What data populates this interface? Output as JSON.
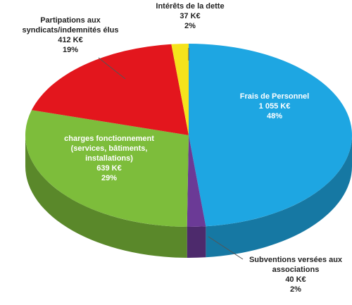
{
  "chart_data": {
    "type": "pie",
    "categories": [
      "Frais de Personnel",
      "Subventions versées aux associations",
      "charges fonctionnement (services, bâtiments, installations)",
      "Partipations aux syndicats/indemnités élus",
      "Intérêts de la dette"
    ],
    "values": [
      1055,
      40,
      639,
      412,
      37
    ],
    "value_labels": [
      "1 055 K€",
      "40 K€",
      "639 K€",
      "412 K€",
      "37 K€"
    ],
    "percents": [
      48,
      2,
      29,
      19,
      2
    ],
    "percent_labels": [
      "48%",
      "2%",
      "29%",
      "19%",
      "2%"
    ],
    "colors": [
      "#1ea6e2",
      "#6b3a96",
      "#7dbd3b",
      "#e3161d",
      "#f5e31c"
    ]
  }
}
